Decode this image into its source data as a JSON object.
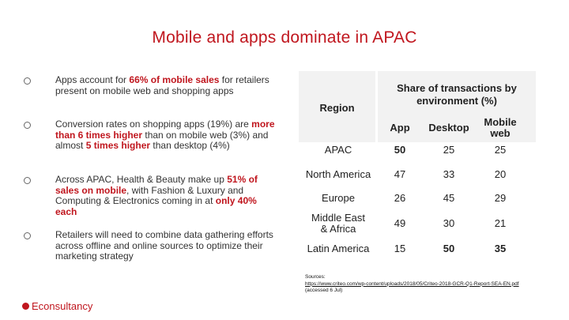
{
  "title": "Mobile and apps dominate in APAC",
  "bullets": [
    {
      "parts": [
        {
          "t": "Apps account for ",
          "h": false
        },
        {
          "t": "66% of mobile sales",
          "h": true
        },
        {
          "t": " for retailers present on mobile web and shopping apps",
          "h": false
        }
      ]
    },
    {
      "parts": [
        {
          "t": "Conversion rates on shopping apps (19%) are ",
          "h": false
        },
        {
          "t": "more than 6 times higher",
          "h": true
        },
        {
          "t": " than on mobile web (3%) and almost ",
          "h": false
        },
        {
          "t": "5 times higher",
          "h": true
        },
        {
          "t": " than desktop (4%)",
          "h": false
        }
      ]
    },
    {
      "parts": [
        {
          "t": "Across APAC, Health & Beauty make up ",
          "h": false
        },
        {
          "t": "51% of sales on mobile",
          "h": true
        },
        {
          "t": ", with Fashion & Luxury and Computing & Electronics coming in at ",
          "h": false
        },
        {
          "t": "only 40% each",
          "h": true
        }
      ]
    },
    {
      "parts": [
        {
          "t": "Retailers will need to combine data gathering efforts across offline and online sources to optimize their marketing strategy",
          "h": false
        }
      ]
    }
  ],
  "table": {
    "region_header": "Region",
    "group_header": "Share of transactions by environment (%)",
    "columns": [
      "App",
      "Desktop",
      "Mobile web"
    ],
    "rows": [
      {
        "region": "APAC",
        "values": [
          "50",
          "25",
          "25"
        ],
        "highlight": [
          true,
          false,
          false
        ]
      },
      {
        "region": "North America",
        "values": [
          "47",
          "33",
          "20"
        ],
        "highlight": [
          false,
          false,
          false
        ]
      },
      {
        "region": "Europe",
        "values": [
          "26",
          "45",
          "29"
        ],
        "highlight": [
          false,
          false,
          false
        ]
      },
      {
        "region": "Middle East & Africa",
        "values": [
          "49",
          "30",
          "21"
        ],
        "highlight": [
          false,
          false,
          false
        ]
      },
      {
        "region": "Latin America",
        "values": [
          "15",
          "50",
          "35"
        ],
        "highlight": [
          false,
          true,
          true
        ]
      }
    ],
    "highlight_color": "#c0161e"
  },
  "sources": {
    "label": "Sources:",
    "link": "https://www.criteo.com/wp-content/uploads/2018/05/Criteo-2018-GCR-Q1-Report-SEA-EN.pdf",
    "note": " (accessed 6 Jul)"
  },
  "logo": {
    "text": "Econsultancy"
  }
}
